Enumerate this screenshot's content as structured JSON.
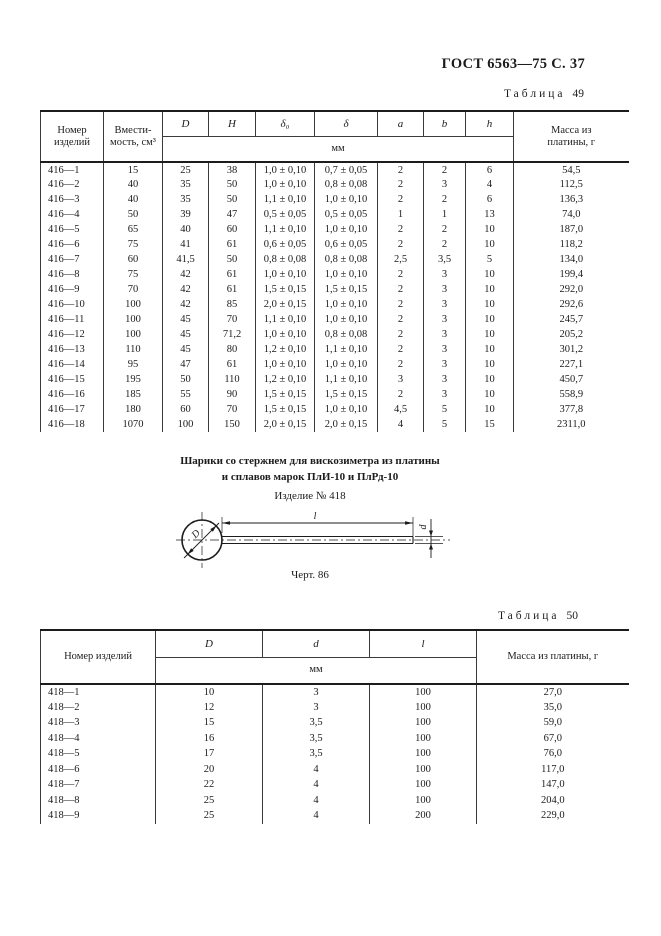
{
  "page": {
    "doc_header": "ГОСТ 6563—75 С. 37"
  },
  "colors": {
    "ink": "#1c1c1c",
    "rule": "#3a3a3a"
  },
  "table49": {
    "label_word": "Таблица",
    "label_num": "49",
    "headers": {
      "nomer": "Номер\nизделий",
      "vmest": "Вмести-\nмость, см³",
      "units": "мм",
      "massa": "Масса из\nплатины, г",
      "dims": [
        "D",
        "H",
        "δ₀",
        "δ",
        "a",
        "b",
        "h"
      ]
    },
    "rows": [
      [
        "416—1",
        "15",
        "25",
        "38",
        "1,0 ± 0,10",
        "0,7 ± 0,05",
        "2",
        "2",
        "6",
        "54,5"
      ],
      [
        "416—2",
        "40",
        "35",
        "50",
        "1,0 ± 0,10",
        "0,8 ± 0,08",
        "2",
        "3",
        "4",
        "112,5"
      ],
      [
        "416—3",
        "40",
        "35",
        "50",
        "1,1 ± 0,10",
        "1,0 ± 0,10",
        "2",
        "2",
        "6",
        "136,3"
      ],
      [
        "416—4",
        "50",
        "39",
        "47",
        "0,5 ± 0,05",
        "0,5 ± 0,05",
        "1",
        "1",
        "13",
        "74,0"
      ],
      [
        "416—5",
        "65",
        "40",
        "60",
        "1,1 ± 0,10",
        "1,0 ± 0,10",
        "2",
        "2",
        "10",
        "187,0"
      ],
      [
        "416—6",
        "75",
        "41",
        "61",
        "0,6 ± 0,05",
        "0,6 ± 0,05",
        "2",
        "2",
        "10",
        "118,2"
      ],
      [
        "416—7",
        "60",
        "41,5",
        "50",
        "0,8 ± 0,08",
        "0,8 ± 0,08",
        "2,5",
        "3,5",
        "5",
        "134,0"
      ],
      [
        "416—8",
        "75",
        "42",
        "61",
        "1,0 ± 0,10",
        "1,0 ± 0,10",
        "2",
        "3",
        "10",
        "199,4"
      ],
      [
        "416—9",
        "70",
        "42",
        "61",
        "1,5 ± 0,15",
        "1,5 ± 0,15",
        "2",
        "3",
        "10",
        "292,0"
      ],
      [
        "416—10",
        "100",
        "42",
        "85",
        "2,0 ± 0,15",
        "1,0 ± 0,10",
        "2",
        "3",
        "10",
        "292,6"
      ],
      [
        "416—11",
        "100",
        "45",
        "70",
        "1,1 ± 0,10",
        "1,0 ± 0,10",
        "2",
        "3",
        "10",
        "245,7"
      ],
      [
        "416—12",
        "100",
        "45",
        "71,2",
        "1,0 ± 0,10",
        "0,8 ± 0,08",
        "2",
        "3",
        "10",
        "205,2"
      ],
      [
        "416—13",
        "110",
        "45",
        "80",
        "1,2 ± 0,10",
        "1,1 ± 0,10",
        "2",
        "3",
        "10",
        "301,2"
      ],
      [
        "416—14",
        "95",
        "47",
        "61",
        "1,0 ± 0,10",
        "1,0 ± 0,10",
        "2",
        "3",
        "10",
        "227,1"
      ],
      [
        "416—15",
        "195",
        "50",
        "110",
        "1,2 ± 0,10",
        "1,1 ± 0,10",
        "3",
        "3",
        "10",
        "450,7"
      ],
      [
        "416—16",
        "185",
        "55",
        "90",
        "1,5 ± 0,15",
        "1,5 ± 0,15",
        "2",
        "3",
        "10",
        "558,9"
      ],
      [
        "416—17",
        "180",
        "60",
        "70",
        "1,5 ± 0,15",
        "1,0 ± 0,10",
        "4,5",
        "5",
        "10",
        "377,8"
      ],
      [
        "416—18",
        "1070",
        "100",
        "150",
        "2,0 ± 0,15",
        "2,0 ± 0,15",
        "4",
        "5",
        "15",
        "2311,0"
      ]
    ]
  },
  "figure": {
    "title": "Шарики со стержнем для вискозиметра из платины\nи сплавов марок ПлИ-10 и ПлРд-10",
    "product": "Изделие № 418",
    "caption": "Черт. 86",
    "dim_D": "D",
    "dim_l": "l",
    "dim_d": "d"
  },
  "table50": {
    "label_word": "Таблица",
    "label_num": "50",
    "headers": {
      "nomer": "Номер изделий",
      "units": "мм",
      "massa": "Масса из платины, г",
      "dims": [
        "D",
        "d",
        "l"
      ]
    },
    "rows": [
      [
        "418—1",
        "10",
        "3",
        "100",
        "27,0"
      ],
      [
        "418—2",
        "12",
        "3",
        "100",
        "35,0"
      ],
      [
        "418—3",
        "15",
        "3,5",
        "100",
        "59,0"
      ],
      [
        "418—4",
        "16",
        "3,5",
        "100",
        "67,0"
      ],
      [
        "418—5",
        "17",
        "3,5",
        "100",
        "76,0"
      ],
      [
        "418—6",
        "20",
        "4",
        "100",
        "117,0"
      ],
      [
        "418—7",
        "22",
        "4",
        "100",
        "147,0"
      ],
      [
        "418—8",
        "25",
        "4",
        "100",
        "204,0"
      ],
      [
        "418—9",
        "25",
        "4",
        "200",
        "229,0"
      ]
    ]
  }
}
